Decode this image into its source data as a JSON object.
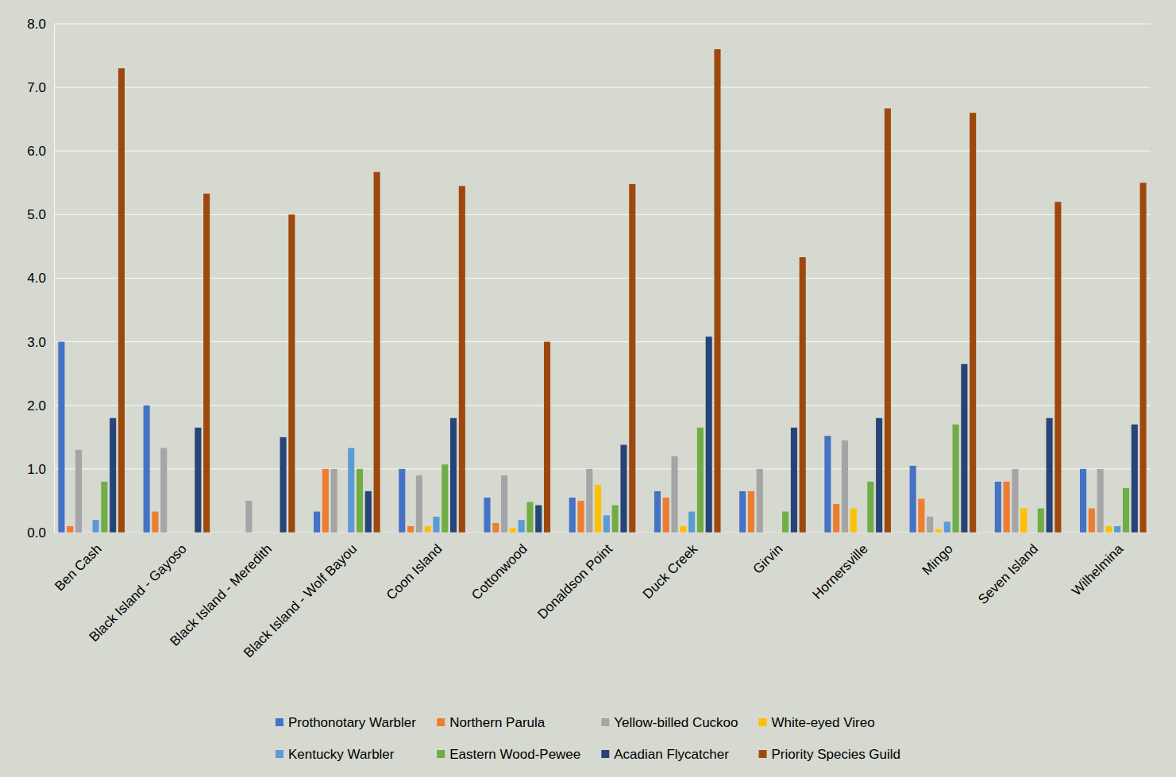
{
  "chart_data": {
    "type": "bar",
    "categories": [
      "Ben Cash",
      "Black Island - Gayoso",
      "Black Island - Meredith",
      "Black Island - Wolf Bayou",
      "Coon Island",
      "Cottonwood",
      "Donaldson Point",
      "Duck Creek",
      "Girvin",
      "Hornersville",
      "Mingo",
      "Seven Island",
      "Wilhelmina"
    ],
    "series": [
      {
        "name": "Prothonotary Warbler",
        "color": "#4472c4",
        "values": [
          3.0,
          2.0,
          0,
          0.33,
          1.0,
          0.55,
          0.55,
          0.65,
          0.65,
          1.52,
          1.05,
          0.8,
          1.0
        ]
      },
      {
        "name": "Northern Parula",
        "color": "#ed7d31",
        "values": [
          0.1,
          0.33,
          0,
          1.0,
          0.1,
          0.15,
          0.5,
          0.55,
          0.65,
          0.45,
          0.53,
          0.8,
          0.38
        ]
      },
      {
        "name": "Yellow-billed Cuckoo",
        "color": "#a5a5a5",
        "values": [
          1.3,
          1.33,
          0.5,
          1.0,
          0.9,
          0.9,
          1.0,
          1.2,
          1.0,
          1.45,
          0.25,
          1.0,
          1.0
        ]
      },
      {
        "name": "White-eyed Vireo",
        "color": "#ffc000",
        "values": [
          0,
          0,
          0,
          0,
          0.1,
          0.07,
          0.75,
          0.1,
          0,
          0.38,
          0.05,
          0.38,
          0.1
        ]
      },
      {
        "name": "Kentucky Warbler",
        "color": "#5b9bd5",
        "values": [
          0.2,
          0,
          0,
          1.33,
          0.25,
          0.2,
          0.27,
          0.33,
          0,
          0,
          0.17,
          0,
          0.1
        ]
      },
      {
        "name": "Eastern Wood-Pewee",
        "color": "#70ad47",
        "values": [
          0.8,
          0,
          0,
          1.0,
          1.07,
          0.48,
          0.43,
          1.65,
          0.33,
          0.8,
          1.7,
          0.38,
          0.7
        ]
      },
      {
        "name": "Acadian Flycatcher",
        "color": "#264478",
        "values": [
          1.8,
          1.65,
          1.5,
          0.65,
          1.8,
          0.43,
          1.38,
          3.08,
          1.65,
          1.8,
          2.65,
          1.8,
          1.7
        ]
      },
      {
        "name": "Priority Species Guild",
        "color": "#9e480e",
        "values": [
          7.3,
          5.33,
          5.0,
          5.67,
          5.45,
          3.0,
          5.48,
          7.6,
          4.33,
          6.67,
          6.6,
          5.2,
          5.5
        ]
      }
    ],
    "ylim": [
      0,
      8
    ],
    "yticks": [
      {
        "value": 0,
        "label": "0.0"
      },
      {
        "value": 1,
        "label": "1.0"
      },
      {
        "value": 2,
        "label": "2.0"
      },
      {
        "value": 3,
        "label": "3.0"
      },
      {
        "value": 4,
        "label": "4.0"
      },
      {
        "value": 5,
        "label": "5.0"
      },
      {
        "value": 6,
        "label": "6.0"
      },
      {
        "value": 7,
        "label": "7.0"
      },
      {
        "value": 8,
        "label": "8.0"
      }
    ],
    "grid": true,
    "legend": "bottom"
  }
}
